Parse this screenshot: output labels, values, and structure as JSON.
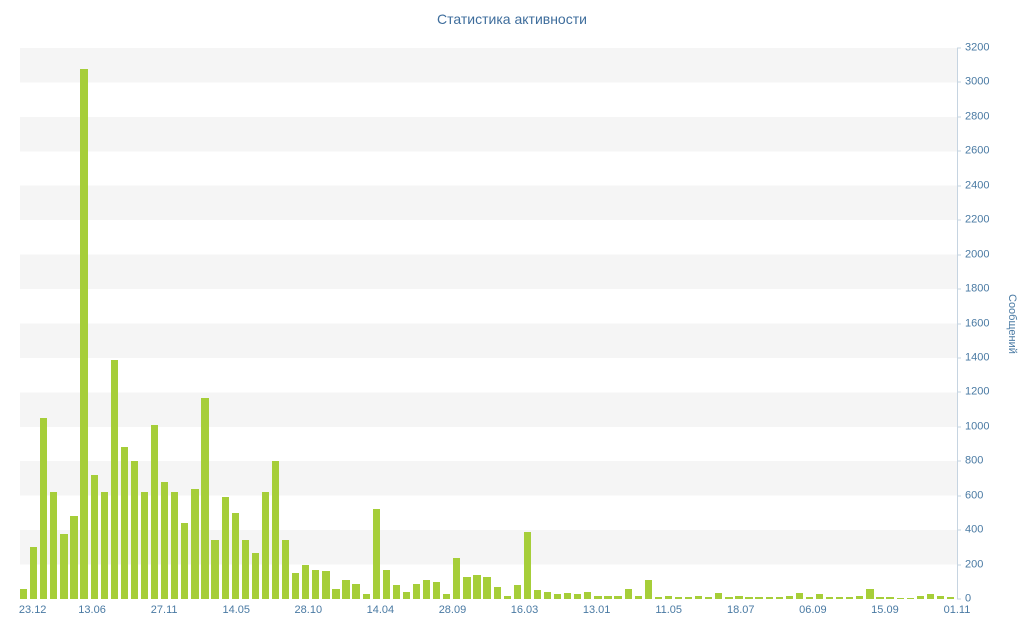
{
  "title": "Статистика активности",
  "colors": {
    "bar": "#a6ce39",
    "title_text": "#3e6d9c",
    "tick_text": "#4a7aa3",
    "axis_line": "#c6d4e1",
    "stripe": "#f5f5f5"
  },
  "chart_data": {
    "type": "bar",
    "title": "Статистика активности",
    "xlabel": "",
    "ylabel": "Сообщений",
    "ylim": [
      0,
      3200
    ],
    "y_axis_side": "right",
    "grid": "alternating horizontal stripes every 200",
    "legend": "none",
    "y_ticks": [
      0,
      200,
      400,
      600,
      800,
      1000,
      1200,
      1400,
      1600,
      1800,
      2000,
      2200,
      2400,
      2600,
      2800,
      3000,
      3200
    ],
    "x_tick_labels": [
      "23.12",
      "13.06",
      "27.11",
      "14.05",
      "28.10",
      "14.04",
      "28.09",
      "16.03",
      "13.01",
      "11.05",
      "18.07",
      "06.09",
      "15.09",
      "01.11"
    ],
    "values": [
      60,
      300,
      1050,
      620,
      380,
      480,
      3080,
      720,
      620,
      1390,
      880,
      800,
      620,
      1010,
      680,
      620,
      440,
      640,
      1170,
      340,
      590,
      500,
      340,
      270,
      620,
      800,
      340,
      150,
      200,
      170,
      160,
      60,
      110,
      90,
      30,
      520,
      170,
      80,
      40,
      90,
      110,
      100,
      30,
      240,
      130,
      140,
      130,
      70,
      20,
      80,
      390,
      50,
      40,
      30,
      35,
      30,
      40,
      15,
      20,
      15,
      60,
      20,
      110,
      10,
      15,
      10,
      10,
      15,
      10,
      35,
      10,
      15,
      10,
      10,
      10,
      10,
      20,
      35,
      10,
      30,
      10,
      10,
      10,
      15,
      60,
      10,
      10,
      5,
      5,
      15,
      30,
      20,
      10
    ]
  }
}
